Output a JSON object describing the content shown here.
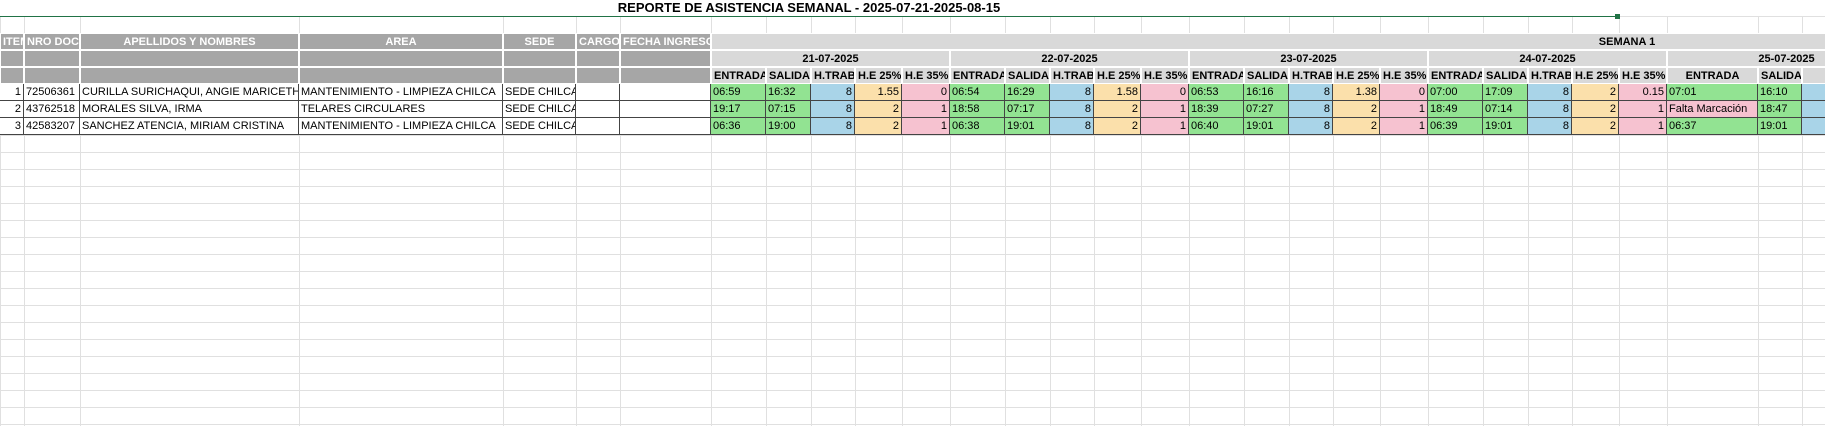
{
  "header": {
    "title": "REPORTE DE ASISTENCIA SEMANAL - 2025-07-21-2025-08-15",
    "week": "SEMANA 1"
  },
  "table": {
    "columns": [
      "ITEM",
      "NRO DOC",
      "APELLIDOS Y NOMBRES",
      "AREA",
      "SEDE",
      "CARGO",
      "FECHA INGRESO"
    ],
    "day_columns": [
      "ENTRADA",
      "SALIDA",
      "H.TRAB",
      "H.E 25%",
      "H.E 35%"
    ],
    "days": [
      "21-07-2025",
      "22-07-2025",
      "23-07-2025",
      "24-07-2025",
      "25-07-2025"
    ],
    "rows": [
      {
        "item": 1,
        "doc": "72506361",
        "name": "CURILLA SURICHAQUI, ANGIE MARICETH",
        "area": "MANTENIMIENTO - LIMPIEZA CHILCA",
        "sede": "SEDE CHILCA",
        "days": [
          [
            "06:59",
            "16:32",
            8,
            1.55,
            0
          ],
          [
            "06:54",
            "16:29",
            8,
            1.58,
            0
          ],
          [
            "06:53",
            "16:16",
            8,
            1.38,
            0
          ],
          [
            "07:00",
            "17:09",
            8,
            2,
            0.15
          ],
          [
            "07:01",
            "16:10"
          ]
        ]
      },
      {
        "item": 2,
        "doc": "43762518",
        "name": "MORALES SILVA, IRMA",
        "area": "TELARES CIRCULARES",
        "sede": "SEDE CHILCA",
        "days": [
          [
            "19:17",
            "07:15",
            8,
            2,
            1
          ],
          [
            "18:58",
            "07:17",
            8,
            2,
            1
          ],
          [
            "18:39",
            "07:27",
            8,
            2,
            1
          ],
          [
            "18:49",
            "07:14",
            8,
            2,
            1
          ],
          [
            "Falta Marcación",
            "18:47"
          ]
        ]
      },
      {
        "item": 3,
        "doc": "42583207",
        "name": "SANCHEZ ATENCIA, MIRIAM CRISTINA",
        "area": "MANTENIMIENTO - LIMPIEZA CHILCA",
        "sede": "SEDE CHILCA",
        "days": [
          [
            "06:36",
            "19:00",
            8,
            2,
            1
          ],
          [
            "06:38",
            "19:01",
            8,
            2,
            1
          ],
          [
            "06:40",
            "19:01",
            8,
            2,
            1
          ],
          [
            "06:39",
            "19:01",
            8,
            2,
            1
          ],
          [
            "06:37",
            "19:01"
          ]
        ]
      }
    ]
  }
}
